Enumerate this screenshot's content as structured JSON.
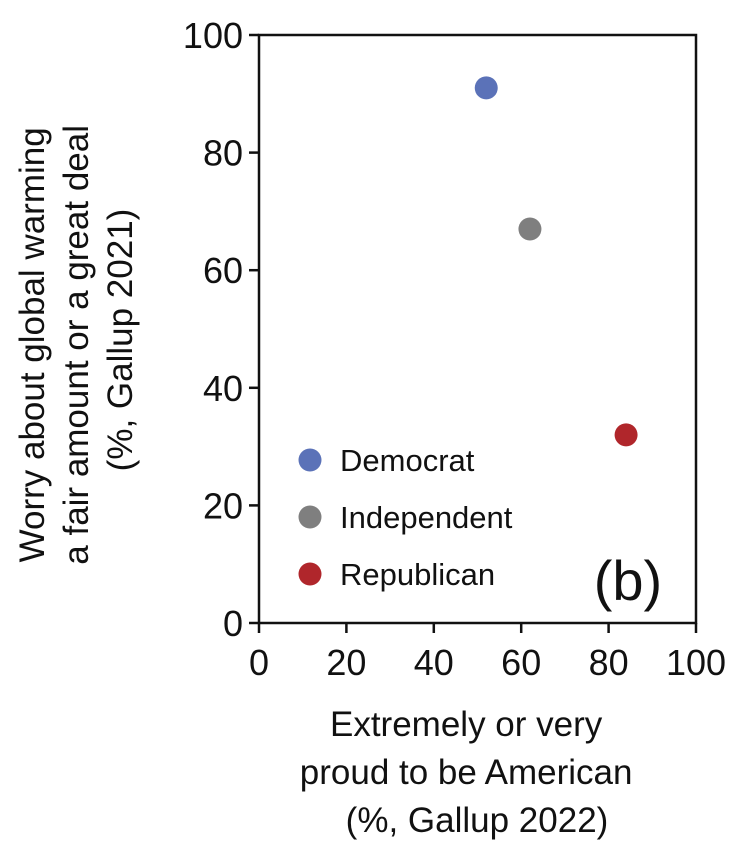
{
  "chart_data": {
    "type": "scatter",
    "panel_label": "(b)",
    "xlabel": [
      "Extremely or very",
      "proud to be American",
      "(%, Gallup 2022)"
    ],
    "ylabel": [
      "Worry about global warming",
      "a fair amount or a great deal",
      "(%, Gallup 2021)"
    ],
    "xlim": [
      0,
      100
    ],
    "ylim": [
      0,
      100
    ],
    "xticks": [
      0,
      20,
      40,
      60,
      80,
      100
    ],
    "yticks": [
      0,
      20,
      40,
      60,
      80,
      100
    ],
    "grid": false,
    "legend_position": "lower-left",
    "series": [
      {
        "name": "Democrat",
        "color": "#5b72b8",
        "x": [
          52
        ],
        "y": [
          91
        ]
      },
      {
        "name": "Independent",
        "color": "#7f7f7f",
        "x": [
          62
        ],
        "y": [
          67
        ]
      },
      {
        "name": "Republican",
        "color": "#b0262b",
        "x": [
          84
        ],
        "y": [
          32
        ]
      }
    ]
  }
}
